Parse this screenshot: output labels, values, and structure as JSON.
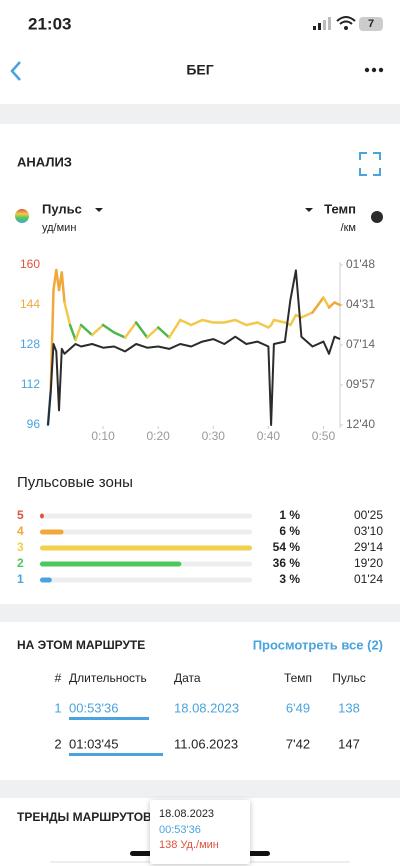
{
  "status_bar": {
    "time": "21:03",
    "battery": "7"
  },
  "header": {
    "title": "БЕГ"
  },
  "chart_data": {
    "type": "line",
    "title": "АНАЛИЗ",
    "x": [
      0,
      0.5,
      1,
      1.5,
      2,
      2.5,
      3,
      4,
      5,
      6,
      8,
      10,
      12,
      14,
      16,
      18,
      20,
      22,
      24,
      26,
      28,
      30,
      32,
      34,
      36,
      38,
      40,
      40.5,
      41,
      43,
      44,
      45,
      46,
      48,
      50,
      51,
      52,
      53
    ],
    "series": [
      {
        "name": "Пульс",
        "unit": "уд/мин",
        "axis": "y",
        "values": [
          96,
          110,
          150,
          158,
          150,
          157,
          145,
          136,
          130,
          136,
          132,
          136,
          133,
          131,
          137,
          131,
          135,
          131,
          138,
          136,
          138,
          137,
          137,
          138,
          136,
          137,
          135,
          136,
          138,
          137,
          136,
          140,
          139,
          141,
          147,
          143,
          145,
          144
        ],
        "point_colors": [
          "#4aa3df",
          "#4aa3df",
          "#f0a83a",
          "#f0a83a",
          "#f0a83a",
          "#f0a83a",
          "#f0a83a",
          "#f2c94c",
          "#4cb84c",
          "#f2c94c",
          "#4cb84c",
          "#f2c94c",
          "#4cb84c",
          "#4cb84c",
          "#f2c94c",
          "#4cb84c",
          "#f2c94c",
          "#4cb84c",
          "#f2c94c",
          "#f2c94c",
          "#f2c94c",
          "#f2c94c",
          "#f2c94c",
          "#f2c94c",
          "#f2c94c",
          "#f2c94c",
          "#f2c94c",
          "#f2c94c",
          "#f2c94c",
          "#f2c94c",
          "#f2c94c",
          "#f2c94c",
          "#f2c94c",
          "#f2c94c",
          "#f0a83a",
          "#f2c94c",
          "#f0a83a",
          "#f0a83a"
        ]
      },
      {
        "name": "Темп",
        "unit": "/км",
        "axis": "y2",
        "color": "#2b2b2b",
        "values": [
          760,
          620,
          430,
          460,
          700,
          450,
          470,
          450,
          430,
          440,
          430,
          445,
          440,
          460,
          430,
          445,
          440,
          450,
          430,
          440,
          420,
          410,
          430,
          400,
          430,
          420,
          440,
          760,
          430,
          420,
          250,
          130,
          400,
          440,
          420,
          470,
          400,
          410
        ]
      }
    ],
    "xlim": [
      0,
      53
    ],
    "xticks": [
      {
        "value": 10,
        "label": "0:10"
      },
      {
        "value": 20,
        "label": "0:20"
      },
      {
        "value": 30,
        "label": "0:30"
      },
      {
        "value": 40,
        "label": "0:40"
      },
      {
        "value": 50,
        "label": "0:50"
      }
    ],
    "ylim": [
      96,
      160
    ],
    "yticks": [
      96,
      112,
      128,
      144,
      160
    ],
    "ytick_colors": [
      "#4aa3df",
      "#4aa3df",
      "#4aa3df",
      "#f0a83a",
      "#e0533f"
    ],
    "y2lim": [
      760,
      108
    ],
    "y2ticks": [
      {
        "value": 108,
        "label": "01'48"
      },
      {
        "value": 271,
        "label": "04'31"
      },
      {
        "value": 434,
        "label": "07'14"
      },
      {
        "value": 597,
        "label": "09'57"
      },
      {
        "value": 760,
        "label": "12'40"
      }
    ]
  },
  "zones": {
    "title": "Пульсовые зоны",
    "rows": [
      {
        "zone": "5",
        "color": "#e0533f",
        "percent": 1,
        "percent_label": "1 %",
        "time": "00'25"
      },
      {
        "zone": "4",
        "color": "#f0a83a",
        "percent": 6,
        "percent_label": "6 %",
        "time": "03'10"
      },
      {
        "zone": "3",
        "color": "#f2d04c",
        "percent": 54,
        "percent_label": "54 %",
        "time": "29'14"
      },
      {
        "zone": "2",
        "color": "#4cc85c",
        "percent": 36,
        "percent_label": "36 %",
        "time": "19'20"
      },
      {
        "zone": "1",
        "color": "#4aa3df",
        "percent": 3,
        "percent_label": "3 %",
        "time": "01'24"
      }
    ]
  },
  "route": {
    "title": "НА ЭТОМ МАРШРУТЕ",
    "link": "Просмотреть все (2)",
    "columns": [
      "#",
      "Длительность",
      "Дата",
      "Темп",
      "Пульс"
    ],
    "rows": [
      [
        "1",
        "00:53'36",
        "18.08.2023",
        "6'49",
        "138"
      ],
      [
        "2",
        "01:03'45",
        "11.06.2023",
        "7'42",
        "147"
      ]
    ],
    "highlight_row": 0
  },
  "trends": {
    "title": "ТРЕНДЫ МАРШРУТОВ"
  },
  "tooltip": {
    "date": "18.08.2023",
    "duration": "00:53'36",
    "pulse": "138 Уд./мин"
  }
}
